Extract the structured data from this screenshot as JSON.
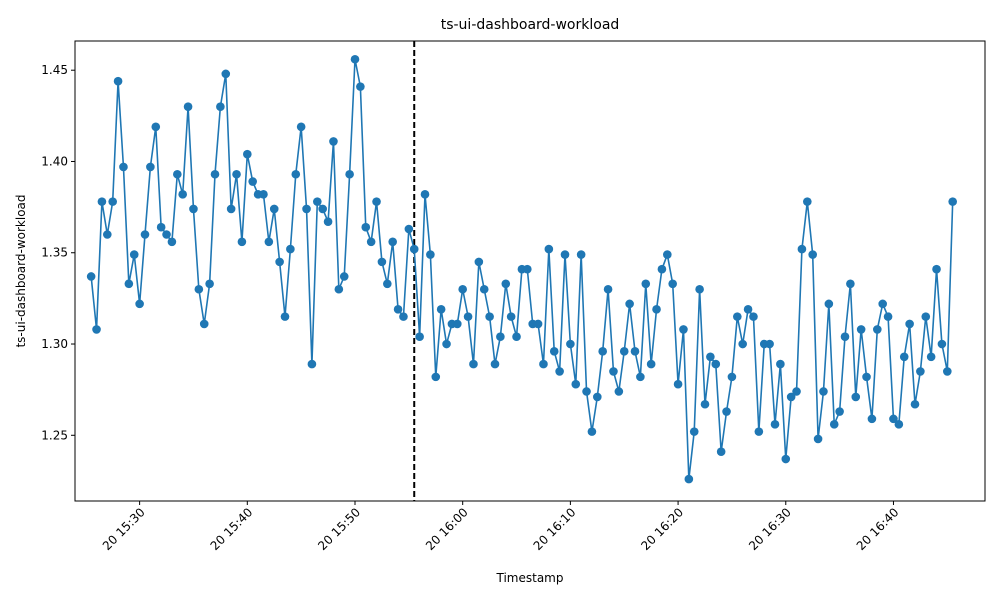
{
  "chart_data": {
    "type": "line",
    "title": "ts-ui-dashboard-workload",
    "xlabel": "Timestamp",
    "ylabel": "ts-ui-dashboard-workload",
    "date_prefix": "20",
    "x_start": "15:25:30",
    "x_step_seconds": 30,
    "xlim": [
      "15:24:00",
      "16:48:30"
    ],
    "ylim": [
      1.214,
      1.466
    ],
    "x_ticks": [
      "20 15:30",
      "20 15:40",
      "20 15:50",
      "20 16:00",
      "20 16:10",
      "20 16:20",
      "20 16:30",
      "20 16:40"
    ],
    "y_ticks": [
      "1.25",
      "1.30",
      "1.35",
      "1.40",
      "1.45"
    ],
    "split_marker_time": "15:55:30",
    "marker": "circle",
    "grid": false,
    "colors": {
      "series": "#1f77b4",
      "split_line": "#000000"
    },
    "series": [
      {
        "values": [
          1.337,
          1.308,
          1.378,
          1.36,
          1.378,
          1.444,
          1.397,
          1.333,
          1.349,
          1.322,
          1.36,
          1.397,
          1.419,
          1.364,
          1.36,
          1.356,
          1.393,
          1.382,
          1.43,
          1.374,
          1.33,
          1.311,
          1.333,
          1.393,
          1.43,
          1.448,
          1.374,
          1.393,
          1.356,
          1.404,
          1.389,
          1.382,
          1.382,
          1.356,
          1.374,
          1.345,
          1.315,
          1.352,
          1.393,
          1.419,
          1.374,
          1.289,
          1.378,
          1.374,
          1.367,
          1.411,
          1.33,
          1.337,
          1.393,
          1.456,
          1.441,
          1.364,
          1.356,
          1.378,
          1.345,
          1.333,
          1.356,
          1.319,
          1.315,
          1.363,
          1.352,
          1.304,
          1.382,
          1.349,
          1.282,
          1.319,
          1.3,
          1.311,
          1.311,
          1.33,
          1.315,
          1.289,
          1.345,
          1.33,
          1.315,
          1.289,
          1.304,
          1.333,
          1.315,
          1.304,
          1.341,
          1.341,
          1.311,
          1.311,
          1.289,
          1.352,
          1.296,
          1.285,
          1.349,
          1.3,
          1.278,
          1.349,
          1.274,
          1.252,
          1.271,
          1.296,
          1.33,
          1.285,
          1.274,
          1.296,
          1.322,
          1.296,
          1.282,
          1.333,
          1.289,
          1.319,
          1.341,
          1.349,
          1.333,
          1.278,
          1.308,
          1.226,
          1.252,
          1.33,
          1.267,
          1.293,
          1.289,
          1.241,
          1.263,
          1.282,
          1.315,
          1.3,
          1.319,
          1.315,
          1.252,
          1.3,
          1.3,
          1.256,
          1.289,
          1.237,
          1.271,
          1.274,
          1.352,
          1.378,
          1.349,
          1.248,
          1.274,
          1.322,
          1.256,
          1.263,
          1.304,
          1.333,
          1.271,
          1.308,
          1.282,
          1.259,
          1.308,
          1.322,
          1.315,
          1.259,
          1.256,
          1.293,
          1.311,
          1.267,
          1.285,
          1.315,
          1.293,
          1.341,
          1.3,
          1.285,
          1.378
        ]
      }
    ]
  }
}
